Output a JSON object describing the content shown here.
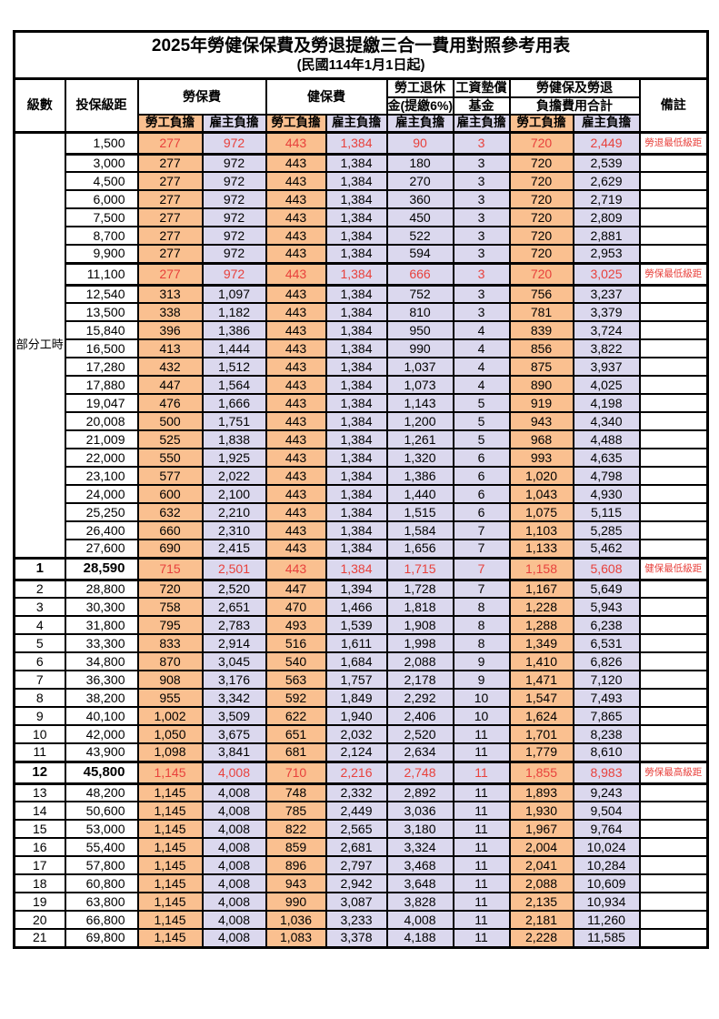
{
  "title": "2025年勞健保保費及勞退提繳三合一費用對照參考用表",
  "subtitle": "(民國114年1月1日起)",
  "colors": {
    "employee_col_bg": "#FAC090",
    "employer_col_bg": "#DBD8EE",
    "highlight_text": "#E8413C"
  },
  "table": {
    "headers": {
      "level": "級數",
      "bracket": "投保級距",
      "labor_fee": "勞保費",
      "health_fee": "健保費",
      "pension_line1": "勞工退休",
      "pension_line2": "金(提繳6%)",
      "wage_fund_line1": "工資墊償",
      "wage_fund_line2": "基金",
      "total_line1": "勞健保及勞退",
      "total_line2": "負擔費用合計",
      "remark": "備註",
      "employee_burden": "勞工負擔",
      "employer_burden": "雇主負擔"
    },
    "part_time": {
      "label": "部分工時",
      "rowspan": 23
    },
    "rows": [
      {
        "level": null,
        "bracket": "1,500",
        "values": [
          "277",
          "972",
          "443",
          "1,384",
          "90",
          "3",
          "720",
          "2,449"
        ],
        "remark": "勞退最低級距",
        "highlight": true,
        "emphasis": false
      },
      {
        "level": null,
        "bracket": "3,000",
        "values": [
          "277",
          "972",
          "443",
          "1,384",
          "180",
          "3",
          "720",
          "2,539"
        ],
        "remark": "",
        "highlight": false,
        "emphasis": false
      },
      {
        "level": null,
        "bracket": "4,500",
        "values": [
          "277",
          "972",
          "443",
          "1,384",
          "270",
          "3",
          "720",
          "2,629"
        ],
        "remark": "",
        "highlight": false,
        "emphasis": false
      },
      {
        "level": null,
        "bracket": "6,000",
        "values": [
          "277",
          "972",
          "443",
          "1,384",
          "360",
          "3",
          "720",
          "2,719"
        ],
        "remark": "",
        "highlight": false,
        "emphasis": false
      },
      {
        "level": null,
        "bracket": "7,500",
        "values": [
          "277",
          "972",
          "443",
          "1,384",
          "450",
          "3",
          "720",
          "2,809"
        ],
        "remark": "",
        "highlight": false,
        "emphasis": false
      },
      {
        "level": null,
        "bracket": "8,700",
        "values": [
          "277",
          "972",
          "443",
          "1,384",
          "522",
          "3",
          "720",
          "2,881"
        ],
        "remark": "",
        "highlight": false,
        "emphasis": false
      },
      {
        "level": null,
        "bracket": "9,900",
        "values": [
          "277",
          "972",
          "443",
          "1,384",
          "594",
          "3",
          "720",
          "2,953"
        ],
        "remark": "",
        "highlight": false,
        "emphasis": false
      },
      {
        "level": null,
        "bracket": "11,100",
        "values": [
          "277",
          "972",
          "443",
          "1,384",
          "666",
          "3",
          "720",
          "3,025"
        ],
        "remark": "勞保最低級距",
        "highlight": true,
        "emphasis": false
      },
      {
        "level": null,
        "bracket": "12,540",
        "values": [
          "313",
          "1,097",
          "443",
          "1,384",
          "752",
          "3",
          "756",
          "3,237"
        ],
        "remark": "",
        "highlight": false,
        "emphasis": false
      },
      {
        "level": null,
        "bracket": "13,500",
        "values": [
          "338",
          "1,182",
          "443",
          "1,384",
          "810",
          "3",
          "781",
          "3,379"
        ],
        "remark": "",
        "highlight": false,
        "emphasis": false
      },
      {
        "level": null,
        "bracket": "15,840",
        "values": [
          "396",
          "1,386",
          "443",
          "1,384",
          "950",
          "4",
          "839",
          "3,724"
        ],
        "remark": "",
        "highlight": false,
        "emphasis": false
      },
      {
        "level": null,
        "bracket": "16,500",
        "values": [
          "413",
          "1,444",
          "443",
          "1,384",
          "990",
          "4",
          "856",
          "3,822"
        ],
        "remark": "",
        "highlight": false,
        "emphasis": false
      },
      {
        "level": null,
        "bracket": "17,280",
        "values": [
          "432",
          "1,512",
          "443",
          "1,384",
          "1,037",
          "4",
          "875",
          "3,937"
        ],
        "remark": "",
        "highlight": false,
        "emphasis": false
      },
      {
        "level": null,
        "bracket": "17,880",
        "values": [
          "447",
          "1,564",
          "443",
          "1,384",
          "1,073",
          "4",
          "890",
          "4,025"
        ],
        "remark": "",
        "highlight": false,
        "emphasis": false
      },
      {
        "level": null,
        "bracket": "19,047",
        "values": [
          "476",
          "1,666",
          "443",
          "1,384",
          "1,143",
          "5",
          "919",
          "4,198"
        ],
        "remark": "",
        "highlight": false,
        "emphasis": false
      },
      {
        "level": null,
        "bracket": "20,008",
        "values": [
          "500",
          "1,751",
          "443",
          "1,384",
          "1,200",
          "5",
          "943",
          "4,340"
        ],
        "remark": "",
        "highlight": false,
        "emphasis": false
      },
      {
        "level": null,
        "bracket": "21,009",
        "values": [
          "525",
          "1,838",
          "443",
          "1,384",
          "1,261",
          "5",
          "968",
          "4,488"
        ],
        "remark": "",
        "highlight": false,
        "emphasis": false
      },
      {
        "level": null,
        "bracket": "22,000",
        "values": [
          "550",
          "1,925",
          "443",
          "1,384",
          "1,320",
          "6",
          "993",
          "4,635"
        ],
        "remark": "",
        "highlight": false,
        "emphasis": false
      },
      {
        "level": null,
        "bracket": "23,100",
        "values": [
          "577",
          "2,022",
          "443",
          "1,384",
          "1,386",
          "6",
          "1,020",
          "4,798"
        ],
        "remark": "",
        "highlight": false,
        "emphasis": false
      },
      {
        "level": null,
        "bracket": "24,000",
        "values": [
          "600",
          "2,100",
          "443",
          "1,384",
          "1,440",
          "6",
          "1,043",
          "4,930"
        ],
        "remark": "",
        "highlight": false,
        "emphasis": false
      },
      {
        "level": null,
        "bracket": "25,250",
        "values": [
          "632",
          "2,210",
          "443",
          "1,384",
          "1,515",
          "6",
          "1,075",
          "5,115"
        ],
        "remark": "",
        "highlight": false,
        "emphasis": false
      },
      {
        "level": null,
        "bracket": "26,400",
        "values": [
          "660",
          "2,310",
          "443",
          "1,384",
          "1,584",
          "7",
          "1,103",
          "5,285"
        ],
        "remark": "",
        "highlight": false,
        "emphasis": false
      },
      {
        "level": null,
        "bracket": "27,600",
        "values": [
          "690",
          "2,415",
          "443",
          "1,384",
          "1,656",
          "7",
          "1,133",
          "5,462"
        ],
        "remark": "",
        "highlight": false,
        "emphasis": false
      },
      {
        "level": "1",
        "bracket": "28,590",
        "values": [
          "715",
          "2,501",
          "443",
          "1,384",
          "1,715",
          "7",
          "1,158",
          "5,608"
        ],
        "remark": "健保最低級距",
        "highlight": true,
        "emphasis": true
      },
      {
        "level": "2",
        "bracket": "28,800",
        "values": [
          "720",
          "2,520",
          "447",
          "1,394",
          "1,728",
          "7",
          "1,167",
          "5,649"
        ],
        "remark": "",
        "highlight": false,
        "emphasis": false
      },
      {
        "level": "3",
        "bracket": "30,300",
        "values": [
          "758",
          "2,651",
          "470",
          "1,466",
          "1,818",
          "8",
          "1,228",
          "5,943"
        ],
        "remark": "",
        "highlight": false,
        "emphasis": false
      },
      {
        "level": "4",
        "bracket": "31,800",
        "values": [
          "795",
          "2,783",
          "493",
          "1,539",
          "1,908",
          "8",
          "1,288",
          "6,238"
        ],
        "remark": "",
        "highlight": false,
        "emphasis": false
      },
      {
        "level": "5",
        "bracket": "33,300",
        "values": [
          "833",
          "2,914",
          "516",
          "1,611",
          "1,998",
          "8",
          "1,349",
          "6,531"
        ],
        "remark": "",
        "highlight": false,
        "emphasis": false
      },
      {
        "level": "6",
        "bracket": "34,800",
        "values": [
          "870",
          "3,045",
          "540",
          "1,684",
          "2,088",
          "9",
          "1,410",
          "6,826"
        ],
        "remark": "",
        "highlight": false,
        "emphasis": false
      },
      {
        "level": "7",
        "bracket": "36,300",
        "values": [
          "908",
          "3,176",
          "563",
          "1,757",
          "2,178",
          "9",
          "1,471",
          "7,120"
        ],
        "remark": "",
        "highlight": false,
        "emphasis": false
      },
      {
        "level": "8",
        "bracket": "38,200",
        "values": [
          "955",
          "3,342",
          "592",
          "1,849",
          "2,292",
          "10",
          "1,547",
          "7,493"
        ],
        "remark": "",
        "highlight": false,
        "emphasis": false
      },
      {
        "level": "9",
        "bracket": "40,100",
        "values": [
          "1,002",
          "3,509",
          "622",
          "1,940",
          "2,406",
          "10",
          "1,624",
          "7,865"
        ],
        "remark": "",
        "highlight": false,
        "emphasis": false
      },
      {
        "level": "10",
        "bracket": "42,000",
        "values": [
          "1,050",
          "3,675",
          "651",
          "2,032",
          "2,520",
          "11",
          "1,701",
          "8,238"
        ],
        "remark": "",
        "highlight": false,
        "emphasis": false
      },
      {
        "level": "11",
        "bracket": "43,900",
        "values": [
          "1,098",
          "3,841",
          "681",
          "2,124",
          "2,634",
          "11",
          "1,779",
          "8,610"
        ],
        "remark": "",
        "highlight": false,
        "emphasis": false
      },
      {
        "level": "12",
        "bracket": "45,800",
        "values": [
          "1,145",
          "4,008",
          "710",
          "2,216",
          "2,748",
          "11",
          "1,855",
          "8,983"
        ],
        "remark": "勞保最高級距",
        "highlight": true,
        "emphasis": true
      },
      {
        "level": "13",
        "bracket": "48,200",
        "values": [
          "1,145",
          "4,008",
          "748",
          "2,332",
          "2,892",
          "11",
          "1,893",
          "9,243"
        ],
        "remark": "",
        "highlight": false,
        "emphasis": false
      },
      {
        "level": "14",
        "bracket": "50,600",
        "values": [
          "1,145",
          "4,008",
          "785",
          "2,449",
          "3,036",
          "11",
          "1,930",
          "9,504"
        ],
        "remark": "",
        "highlight": false,
        "emphasis": false
      },
      {
        "level": "15",
        "bracket": "53,000",
        "values": [
          "1,145",
          "4,008",
          "822",
          "2,565",
          "3,180",
          "11",
          "1,967",
          "9,764"
        ],
        "remark": "",
        "highlight": false,
        "emphasis": false
      },
      {
        "level": "16",
        "bracket": "55,400",
        "values": [
          "1,145",
          "4,008",
          "859",
          "2,681",
          "3,324",
          "11",
          "2,004",
          "10,024"
        ],
        "remark": "",
        "highlight": false,
        "emphasis": false
      },
      {
        "level": "17",
        "bracket": "57,800",
        "values": [
          "1,145",
          "4,008",
          "896",
          "2,797",
          "3,468",
          "11",
          "2,041",
          "10,284"
        ],
        "remark": "",
        "highlight": false,
        "emphasis": false
      },
      {
        "level": "18",
        "bracket": "60,800",
        "values": [
          "1,145",
          "4,008",
          "943",
          "2,942",
          "3,648",
          "11",
          "2,088",
          "10,609"
        ],
        "remark": "",
        "highlight": false,
        "emphasis": false
      },
      {
        "level": "19",
        "bracket": "63,800",
        "values": [
          "1,145",
          "4,008",
          "990",
          "3,087",
          "3,828",
          "11",
          "2,135",
          "10,934"
        ],
        "remark": "",
        "highlight": false,
        "emphasis": false
      },
      {
        "level": "20",
        "bracket": "66,800",
        "values": [
          "1,145",
          "4,008",
          "1,036",
          "3,233",
          "4,008",
          "11",
          "2,181",
          "11,260"
        ],
        "remark": "",
        "highlight": false,
        "emphasis": false
      },
      {
        "level": "21",
        "bracket": "69,800",
        "values": [
          "1,145",
          "4,008",
          "1,083",
          "3,378",
          "4,188",
          "11",
          "2,228",
          "11,585"
        ],
        "remark": "",
        "highlight": false,
        "emphasis": false
      }
    ]
  }
}
